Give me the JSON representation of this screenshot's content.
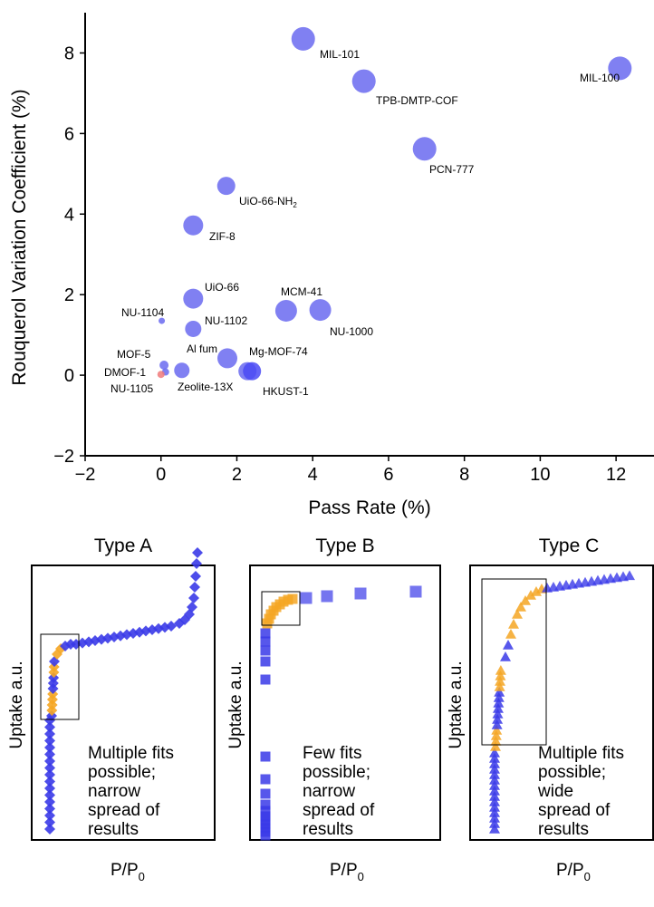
{
  "chart_data": [
    {
      "type": "scatter",
      "title": "",
      "xlabel": "Pass Rate (%)",
      "ylabel": "Rouquerol Variation Coefficient (%)",
      "xlim": [
        -2,
        13
      ],
      "ylim": [
        -2,
        9
      ],
      "xticks": [
        "−2",
        "0",
        "2",
        "4",
        "6",
        "8",
        "10",
        "12"
      ],
      "yticks": [
        "−2",
        "0",
        "2",
        "4",
        "6",
        "8"
      ],
      "grid": false,
      "legend": "none",
      "points": [
        {
          "label": "MIL-101",
          "x": 3.75,
          "y": 8.35,
          "size": 13,
          "color": "#6a6af0"
        },
        {
          "label": "TPB-DMTP-COF",
          "x": 5.35,
          "y": 7.3,
          "size": 13,
          "color": "#6a6af0"
        },
        {
          "label": "MIL-100",
          "x": 12.1,
          "y": 7.62,
          "size": 13,
          "color": "#6a6af0"
        },
        {
          "label": "PCN-777",
          "x": 6.95,
          "y": 5.62,
          "size": 13,
          "color": "#6a6af0"
        },
        {
          "label": "UiO-66-NH",
          "sub": "2",
          "x": 1.72,
          "y": 4.7,
          "size": 10,
          "color": "#6a6af0"
        },
        {
          "label": "ZIF-8",
          "x": 0.85,
          "y": 3.72,
          "size": 11,
          "color": "#6a6af0"
        },
        {
          "label": "UiO-66",
          "x": 0.85,
          "y": 1.9,
          "size": 11,
          "color": "#6a6af0"
        },
        {
          "label": "NU-1104",
          "x": 0.02,
          "y": 1.35,
          "size": 3.5,
          "color": "#6a6af0"
        },
        {
          "label": "NU-1102",
          "x": 0.85,
          "y": 1.15,
          "size": 9,
          "color": "#6a6af0"
        },
        {
          "label": "MCM-41",
          "x": 3.3,
          "y": 1.6,
          "size": 12,
          "color": "#6a6af0"
        },
        {
          "label": "NU-1000",
          "x": 4.2,
          "y": 1.62,
          "size": 12,
          "color": "#6a6af0"
        },
        {
          "label": "Al fum",
          "x": 1.75,
          "y": 0.42,
          "size": 11,
          "color": "#6a6af0"
        },
        {
          "label": "Mg-MOF-74",
          "x": 2.28,
          "y": 0.1,
          "size": 10,
          "color": "#6a6af0"
        },
        {
          "label": "HKUST-1",
          "x": 2.4,
          "y": 0.1,
          "size": 10,
          "color": "#4a4af5"
        },
        {
          "label": "MOF-5",
          "x": 0.08,
          "y": 0.25,
          "size": 5,
          "color": "#6a6af0"
        },
        {
          "label": "DMOF-1",
          "x": 0.12,
          "y": 0.08,
          "size": 4,
          "color": "#6a6af0"
        },
        {
          "label": "NU-1105",
          "x": 0.0,
          "y": 0.02,
          "size": 4,
          "color": "#f07a7a"
        },
        {
          "label": "Zeolite-13X",
          "x": 0.55,
          "y": 0.12,
          "size": 8.5,
          "color": "#6a6af0"
        }
      ]
    },
    {
      "type": "scatter",
      "title": "Type A",
      "xlabel": "P/P",
      "xlabel_sub": "0",
      "ylabel": "Uptake a.u.",
      "marker": "diamond",
      "annotation": [
        "Multiple fits",
        "possible;",
        "narrow",
        "spread of",
        "results"
      ],
      "colors": {
        "series": "#3a3ae8",
        "highlight": "#f5a623"
      }
    },
    {
      "type": "scatter",
      "title": "Type B",
      "xlabel": "P/P",
      "xlabel_sub": "0",
      "ylabel": "Uptake a.u.",
      "marker": "square",
      "annotation": [
        "Few fits",
        "possible;",
        "narrow",
        "spread of",
        "results"
      ],
      "colors": {
        "series": "#3a3ae8",
        "highlight": "#f5a623"
      }
    },
    {
      "type": "scatter",
      "title": "Type C",
      "xlabel": "P/P",
      "xlabel_sub": "0",
      "ylabel": "Uptake a.u.",
      "marker": "triangle",
      "annotation": [
        "Multiple fits",
        "possible;",
        "wide",
        "spread of",
        "results"
      ],
      "colors": {
        "series": "#3a3ae8",
        "highlight": "#f5a623"
      }
    }
  ]
}
